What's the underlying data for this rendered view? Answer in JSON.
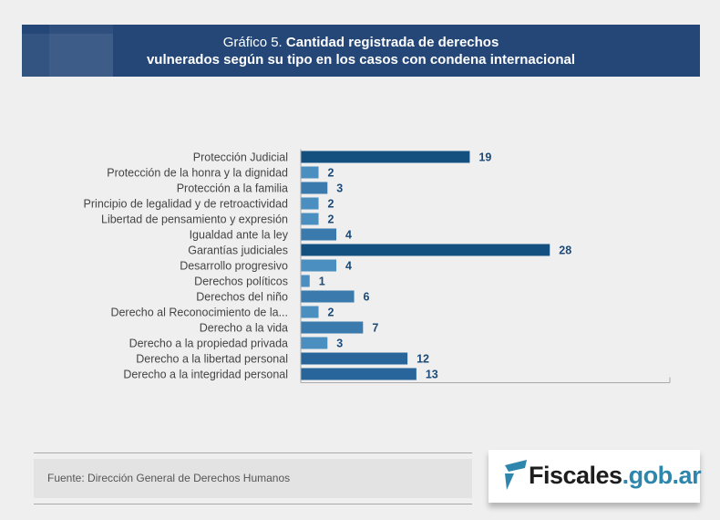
{
  "header": {
    "prefix": "Gráfico 5.",
    "title_line1": "Cantidad registrada de derechos",
    "title_line2": "vulnerados según su tipo en los casos con condena internacional"
  },
  "chart_data": {
    "type": "bar",
    "orientation": "horizontal",
    "title": "Gráfico 5. Cantidad registrada de derechos vulnerados según su tipo en los casos con condena internacional",
    "categories": [
      "Protección Judicial",
      "Protección de la honra y la dignidad",
      "Protección a la familia",
      "Principio de legalidad y de retroactividad",
      "Libertad de pensamiento y expresión",
      "Igualdad ante la ley",
      "Garantías judiciales",
      "Desarrollo progresivo",
      "Derechos políticos",
      "Derechos del niño",
      "Derecho al Reconocimiento de la...",
      "Derecho a la vida",
      "Derecho a la propiedad privada",
      "Derecho a la libertad personal",
      "Derecho a la integridad personal"
    ],
    "values": [
      19,
      2,
      3,
      2,
      2,
      4,
      28,
      4,
      1,
      6,
      2,
      7,
      3,
      12,
      13
    ],
    "colors": [
      "#134f7f",
      "#4a8fbf",
      "#3a7aac",
      "#4a8fbf",
      "#4a8fbf",
      "#3a7aac",
      "#134f7f",
      "#4a8fbf",
      "#4a8fbf",
      "#3a7aac",
      "#4a8fbf",
      "#3a7aac",
      "#4a8fbf",
      "#28659a",
      "#28659a"
    ],
    "xlim": [
      0,
      41.5
    ],
    "grid": false,
    "legend": "none",
    "label_color": "#1b4a78"
  },
  "footer": {
    "source": "Fuente: Dirección General de Derechos Humanos",
    "logo_main": "Fiscales",
    "logo_domain": ".gob.ar"
  }
}
